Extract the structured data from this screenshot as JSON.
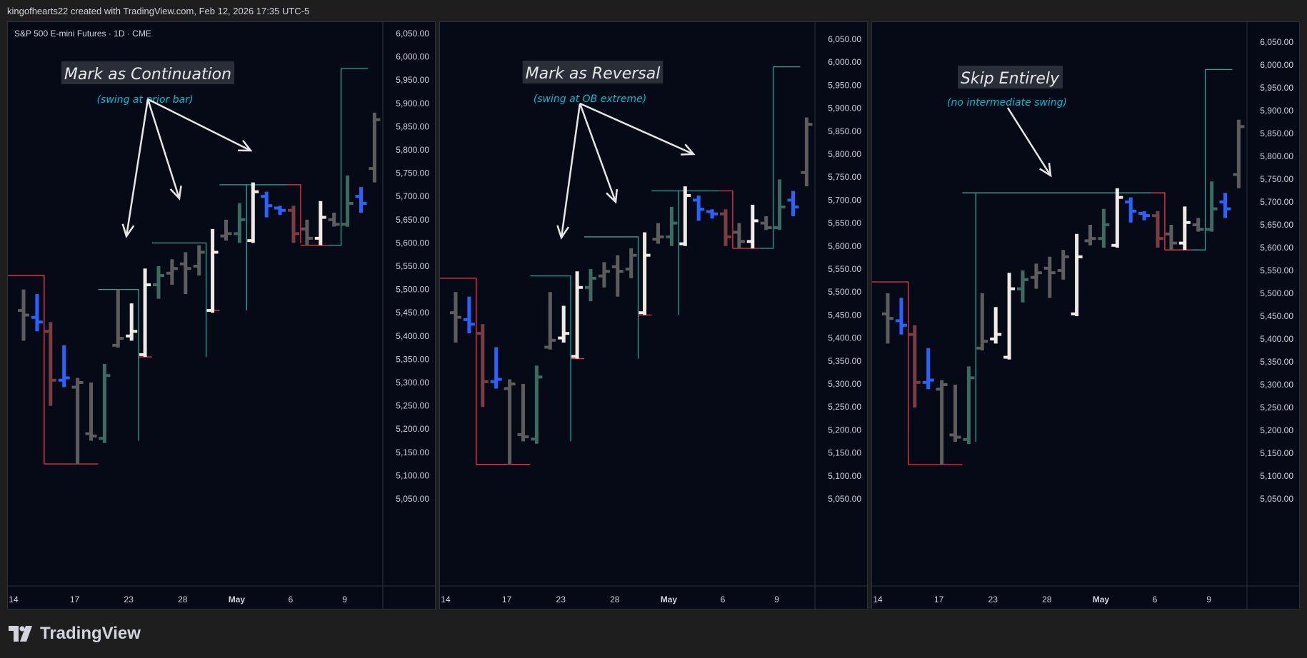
{
  "header": {
    "text": "kingofhearts22 created with TradingView.com, Feb 12, 2026 17:35 UTC-5"
  },
  "symbol": "S&P 500 E-mini Futures · 1D · CME",
  "brand": {
    "name": "TradingView"
  },
  "colors": {
    "bg": "#050a16",
    "grid_sep": "#2f3138",
    "axis_text": "#d1d4dc",
    "bull_box": "#26a69a",
    "bear_box": "#f23645",
    "callout": "#00bcd4",
    "gray_bar": "#5d5d5d",
    "white_bar": "#f0ebe4",
    "blue_bar": "#2962ff",
    "green_bar": "#3d6b62",
    "red_bar": "#7a3e42",
    "annotation_bg": "#2a2e39"
  },
  "chart_data": [
    {
      "type": "ohlc",
      "panel": 1,
      "title": "S&P 500 E-mini Futures · 1D · CME",
      "x_ticks": [
        "14",
        "17",
        "23",
        "28",
        "May",
        "6",
        "9"
      ],
      "y_ticks": [
        "6,050.00",
        "6,000.00",
        "5,950.00",
        "5,900.00",
        "5,850.00",
        "5,800.00",
        "5,750.00",
        "5,700.00",
        "5,650.00",
        "5,600.00",
        "5,550.00",
        "5,500.00",
        "5,450.00",
        "5,400.00",
        "5,350.00",
        "5,300.00",
        "5,250.00",
        "5,200.00",
        "5,150.00",
        "5,100.00",
        "5,050.00"
      ],
      "annotation": "Mark as Continuation",
      "subnote": "(swing at prior bar)"
    },
    {
      "type": "ohlc",
      "panel": 2,
      "x_ticks": [
        "14",
        "17",
        "23",
        "28",
        "May",
        "6",
        "9"
      ],
      "y_ticks": [
        "6,050.00",
        "6,000.00",
        "5,950.00",
        "5,900.00",
        "5,850.00",
        "5,800.00",
        "5,750.00",
        "5,700.00",
        "5,650.00",
        "5,600.00",
        "5,550.00",
        "5,500.00",
        "5,450.00",
        "5,400.00",
        "5,350.00",
        "5,300.00",
        "5,250.00",
        "5,200.00",
        "5,150.00",
        "5,100.00",
        "5,050.00"
      ],
      "annotation": "Mark as Reversal",
      "subnote": "(swing at OB extreme)"
    },
    {
      "type": "ohlc",
      "panel": 3,
      "x_ticks": [
        "14",
        "17",
        "23",
        "28",
        "May",
        "6",
        "9"
      ],
      "y_ticks": [
        "6,050.00",
        "6,000.00",
        "5,950.00",
        "5,900.00",
        "5,850.00",
        "5,800.00",
        "5,750.00",
        "5,700.00",
        "5,650.00",
        "5,600.00",
        "5,550.00",
        "5,500.00",
        "5,450.00",
        "5,400.00",
        "5,350.00",
        "5,300.00",
        "5,250.00",
        "5,200.00",
        "5,150.00",
        "5,100.00",
        "5,050.00"
      ],
      "annotation": "Skip Entirely",
      "subnote": "(no intermediate swing)"
    }
  ],
  "bars": [
    {
      "o": 5455,
      "h": 5500,
      "l": 5390,
      "c": 5445,
      "k": "gray"
    },
    {
      "o": 5440,
      "h": 5490,
      "l": 5410,
      "c": 5430,
      "k": "blue"
    },
    {
      "o": 5410,
      "h": 5430,
      "l": 5250,
      "c": 5305,
      "k": "red"
    },
    {
      "o": 5305,
      "h": 5380,
      "l": 5290,
      "c": 5310,
      "k": "blue"
    },
    {
      "o": 5290,
      "h": 5310,
      "l": 5125,
      "c": 5300,
      "k": "gray"
    },
    {
      "o": 5190,
      "h": 5300,
      "l": 5175,
      "c": 5185,
      "k": "gray"
    },
    {
      "o": 5180,
      "h": 5340,
      "l": 5170,
      "c": 5315,
      "k": "green"
    },
    {
      "o": 5380,
      "h": 5500,
      "l": 5375,
      "c": 5395,
      "k": "gray"
    },
    {
      "o": 5400,
      "h": 5470,
      "l": 5390,
      "c": 5410,
      "k": "white"
    },
    {
      "o": 5360,
      "h": 5545,
      "l": 5355,
      "c": 5510,
      "k": "white"
    },
    {
      "o": 5510,
      "h": 5550,
      "l": 5480,
      "c": 5530,
      "k": "green"
    },
    {
      "o": 5535,
      "h": 5565,
      "l": 5510,
      "c": 5545,
      "k": "gray"
    },
    {
      "o": 5555,
      "h": 5580,
      "l": 5490,
      "c": 5545,
      "k": "gray"
    },
    {
      "o": 5550,
      "h": 5595,
      "l": 5530,
      "c": 5580,
      "k": "gray"
    },
    {
      "o": 5455,
      "h": 5630,
      "l": 5450,
      "c": 5580,
      "k": "white"
    },
    {
      "o": 5615,
      "h": 5650,
      "l": 5605,
      "c": 5620,
      "k": "gray"
    },
    {
      "o": 5620,
      "h": 5685,
      "l": 5600,
      "c": 5650,
      "k": "green"
    },
    {
      "o": 5605,
      "h": 5730,
      "l": 5600,
      "c": 5710,
      "k": "white"
    },
    {
      "o": 5700,
      "h": 5710,
      "l": 5655,
      "c": 5680,
      "k": "blue"
    },
    {
      "o": 5675,
      "h": 5680,
      "l": 5660,
      "c": 5670,
      "k": "blue"
    },
    {
      "o": 5670,
      "h": 5680,
      "l": 5600,
      "c": 5620,
      "k": "red"
    },
    {
      "o": 5630,
      "h": 5650,
      "l": 5595,
      "c": 5610,
      "k": "gray"
    },
    {
      "o": 5610,
      "h": 5690,
      "l": 5595,
      "c": 5655,
      "k": "white"
    },
    {
      "o": 5650,
      "h": 5665,
      "l": 5635,
      "c": 5640,
      "k": "gray"
    },
    {
      "o": 5640,
      "h": 5745,
      "l": 5635,
      "c": 5685,
      "k": "green"
    },
    {
      "o": 5700,
      "h": 5720,
      "l": 5665,
      "c": 5685,
      "k": "blue"
    },
    {
      "o": 5760,
      "h": 5880,
      "l": 5730,
      "c": 5865,
      "k": "gray"
    }
  ]
}
